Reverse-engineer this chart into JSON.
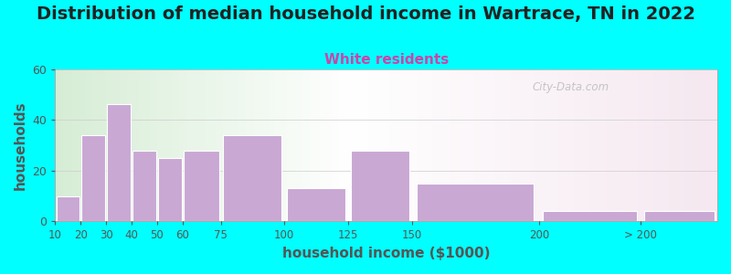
{
  "title": "Distribution of median household income in Wartrace, TN in 2022",
  "subtitle": "White residents",
  "xlabel": "household income ($1000)",
  "ylabel": "households",
  "bar_left_edges": [
    10,
    20,
    30,
    40,
    50,
    60,
    75,
    100,
    125,
    150,
    200,
    240
  ],
  "bar_widths": [
    10,
    10,
    10,
    10,
    10,
    15,
    25,
    25,
    25,
    50,
    40,
    30
  ],
  "bar_heights": [
    10,
    34,
    46,
    28,
    25,
    28,
    34,
    13,
    28,
    15,
    4,
    4
  ],
  "tick_positions": [
    10,
    20,
    30,
    40,
    50,
    60,
    75,
    100,
    125,
    150,
    200,
    240
  ],
  "tick_labels": [
    "10",
    "20",
    "30",
    "40",
    "50",
    "60",
    "75",
    "100",
    "125",
    "150",
    "200",
    "> 200"
  ],
  "bar_color": "#c9a8d4",
  "bar_edge_color": "#ffffff",
  "ylim": [
    0,
    60
  ],
  "xlim": [
    10,
    270
  ],
  "yticks": [
    0,
    20,
    40,
    60
  ],
  "background_outer": "#00FFFF",
  "plot_bg_left": "#d6edd5",
  "plot_bg_right": "#f5e8f0",
  "title_fontsize": 14,
  "subtitle_color": "#cc44aa",
  "subtitle_fontsize": 11,
  "axis_label_color": "#555555",
  "tick_color": "#555555",
  "watermark": "City-Data.com"
}
